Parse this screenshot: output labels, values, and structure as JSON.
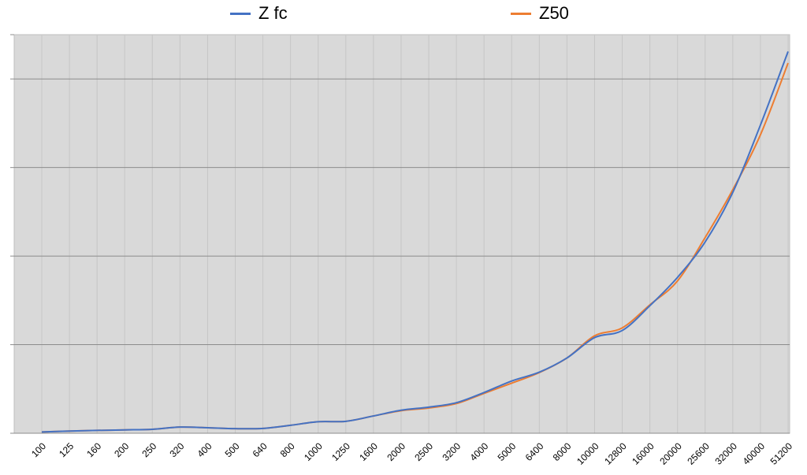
{
  "chart_data": {
    "type": "line",
    "categories": [
      "100",
      "125",
      "160",
      "200",
      "250",
      "320",
      "400",
      "500",
      "640",
      "800",
      "1000",
      "1250",
      "1600",
      "2000",
      "2500",
      "3200",
      "4000",
      "5000",
      "6400",
      "8000",
      "10000",
      "12800",
      "16000",
      "20000",
      "25600",
      "32000",
      "40000",
      "51200"
    ],
    "series": [
      {
        "name": "Z fc",
        "color": "#4472c4",
        "values": [
          0.15,
          0.25,
          0.32,
          0.38,
          0.45,
          0.7,
          0.62,
          0.52,
          0.55,
          0.9,
          1.3,
          1.35,
          1.95,
          2.6,
          2.95,
          3.45,
          4.6,
          5.9,
          6.9,
          8.5,
          10.8,
          11.6,
          14.4,
          17.6,
          21.6,
          27.2,
          34.8,
          43.1
        ]
      },
      {
        "name": "Z50",
        "color": "#ed7d31",
        "values": [
          0.15,
          0.25,
          0.32,
          0.38,
          0.45,
          0.7,
          0.62,
          0.52,
          0.55,
          0.9,
          1.3,
          1.35,
          1.95,
          2.55,
          2.85,
          3.35,
          4.5,
          5.65,
          6.85,
          8.5,
          11.0,
          11.9,
          14.5,
          17.2,
          22.1,
          27.5,
          33.7,
          41.8
        ]
      }
    ],
    "ylim": [
      0,
      45
    ],
    "y_gridlines": [
      10,
      20,
      30,
      40
    ],
    "x_grid": true,
    "legend_position": "top"
  }
}
